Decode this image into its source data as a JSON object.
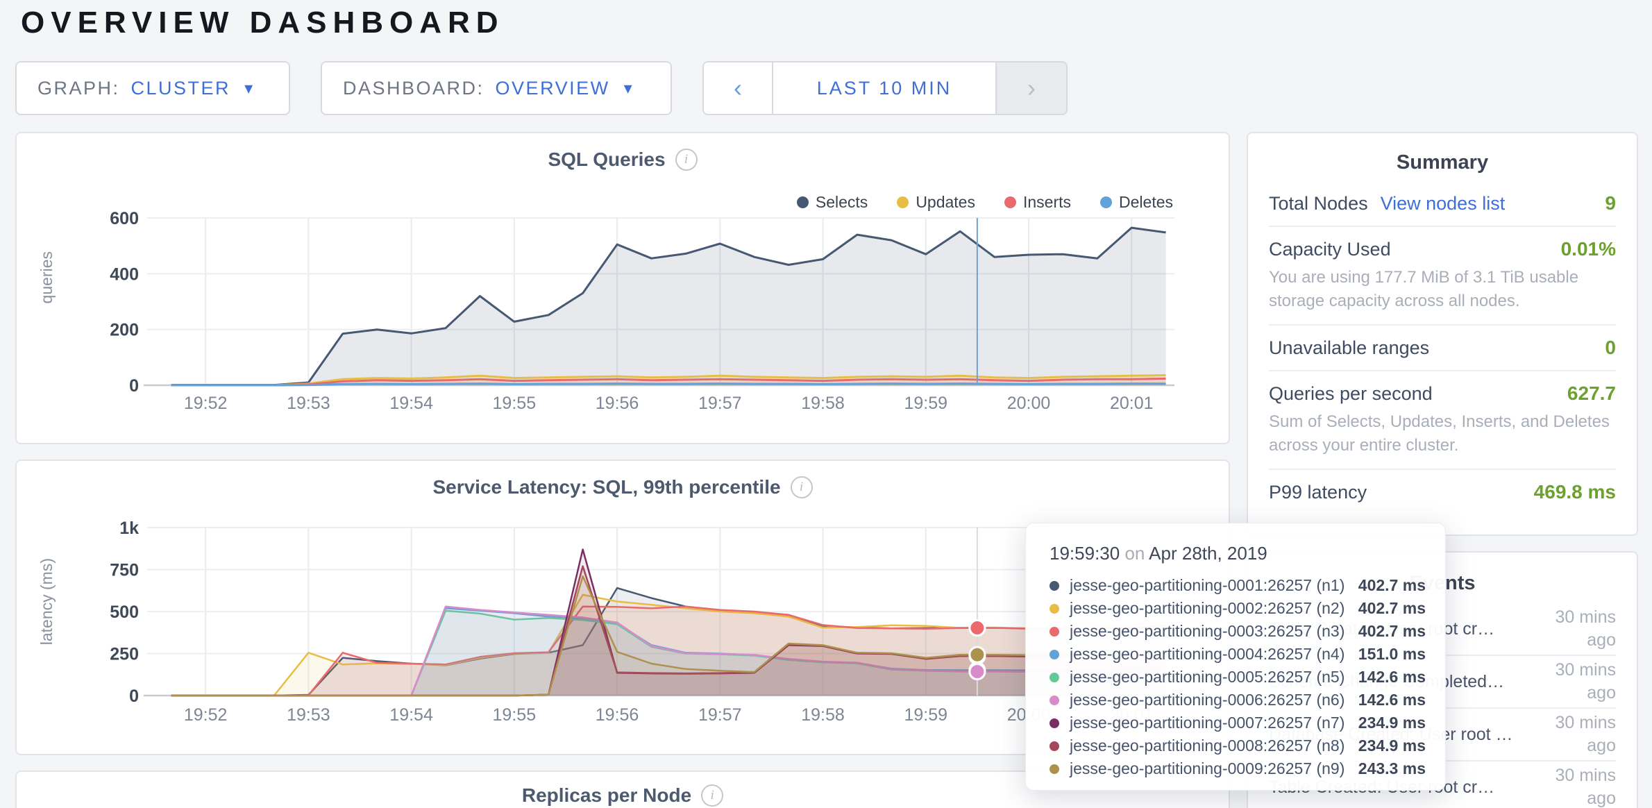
{
  "page": {
    "title": "OVERVIEW DASHBOARD"
  },
  "controls": {
    "graph": {
      "label": "GRAPH:",
      "value": "CLUSTER"
    },
    "dashboard": {
      "label": "DASHBOARD:",
      "value": "OVERVIEW"
    },
    "timewindow": {
      "label": "LAST 10 MIN",
      "prev": "‹",
      "next": "›"
    }
  },
  "summary": {
    "title": "Summary",
    "rows": [
      {
        "label": "Total Nodes",
        "link": "View nodes list",
        "value": "9"
      },
      {
        "label": "Capacity Used",
        "value": "0.01%",
        "description": "You are using 177.7 MiB of 3.1 TiB usable storage capacity across all nodes."
      },
      {
        "label": "Unavailable ranges",
        "value": "0"
      },
      {
        "label": "Queries per second",
        "value": "627.7",
        "description": "Sum of Selects, Updates, Inserts, and Deletes across your entire cluster."
      },
      {
        "label": "P99 latency",
        "value": "469.8 ms"
      }
    ]
  },
  "events": {
    "title": "Events",
    "items": [
      {
        "text": "Table Created: User root cr…",
        "time_ago": "30 mins ago"
      },
      {
        "text": "Schema Change Completed…",
        "time_ago": "30 mins ago"
      },
      {
        "text": "Database Created: User root …",
        "time_ago": "30 mins ago"
      },
      {
        "text": "Table Created: User root cr…",
        "time_ago": "30 mins ago"
      }
    ]
  },
  "tooltip": {
    "time": "19:59:30",
    "preposition": "on",
    "date": "Apr 28th, 2019",
    "rows": [
      {
        "name": "jesse-geo-partitioning-0001:26257 (n1)",
        "value": "402.7 ms"
      },
      {
        "name": "jesse-geo-partitioning-0002:26257 (n2)",
        "value": "402.7 ms"
      },
      {
        "name": "jesse-geo-partitioning-0003:26257 (n3)",
        "value": "402.7 ms"
      },
      {
        "name": "jesse-geo-partitioning-0004:26257 (n4)",
        "value": "151.0 ms"
      },
      {
        "name": "jesse-geo-partitioning-0005:26257 (n5)",
        "value": "142.6 ms"
      },
      {
        "name": "jesse-geo-partitioning-0006:26257 (n6)",
        "value": "142.6 ms"
      },
      {
        "name": "jesse-geo-partitioning-0007:26257 (n7)",
        "value": "234.9 ms"
      },
      {
        "name": "jesse-geo-partitioning-0008:26257 (n8)",
        "value": "234.9 ms"
      },
      {
        "name": "jesse-geo-partitioning-0009:26257 (n9)",
        "value": "243.3 ms"
      }
    ]
  },
  "chart_data": [
    {
      "type": "area",
      "title": "SQL Queries",
      "ylabel": "queries",
      "ylim": [
        0,
        600
      ],
      "y_ticks": [
        0,
        200,
        400,
        600
      ],
      "y_tick_labels": [
        "0",
        "200",
        "400",
        "600"
      ],
      "x_tick_labels": [
        "19:52",
        "19:53",
        "19:54",
        "19:55",
        "19:56",
        "19:57",
        "19:58",
        "19:59",
        "20:00",
        "20:01"
      ],
      "legend_position": "top-right",
      "grid": true,
      "crosshair_time": "19:59:30",
      "crosshair_time_sec": 480,
      "crosshair_color": "#70a1d9",
      "times_sec": [
        10,
        30,
        50,
        70,
        90,
        110,
        130,
        150,
        170,
        190,
        210,
        230,
        250,
        270,
        290,
        310,
        330,
        350,
        370,
        390,
        410,
        430,
        450,
        470,
        490,
        510,
        530,
        550,
        570,
        590
      ],
      "series": [
        {
          "name": "Selects",
          "color": "#475872",
          "values": [
            1,
            1,
            1,
            1,
            10,
            185,
            200,
            186,
            205,
            320,
            228,
            252,
            330,
            505,
            455,
            472,
            508,
            460,
            432,
            452,
            540,
            520,
            470,
            552,
            460,
            468,
            470,
            455,
            565,
            548
          ]
        },
        {
          "name": "Updates",
          "color": "#E7BE45",
          "values": [
            0,
            0,
            0,
            0,
            6,
            22,
            26,
            24,
            28,
            34,
            26,
            28,
            30,
            32,
            28,
            30,
            34,
            30,
            28,
            26,
            30,
            32,
            30,
            34,
            28,
            26,
            30,
            32,
            34,
            36
          ]
        },
        {
          "name": "Inserts",
          "color": "#E9696C",
          "values": [
            0,
            0,
            0,
            0,
            3,
            14,
            18,
            16,
            18,
            22,
            16,
            18,
            20,
            22,
            18,
            20,
            22,
            20,
            18,
            16,
            20,
            22,
            20,
            22,
            18,
            16,
            20,
            22,
            22,
            24
          ]
        },
        {
          "name": "Deletes",
          "color": "#61A2DB",
          "values": [
            0,
            0,
            0,
            0,
            1,
            4,
            5,
            4,
            5,
            6,
            4,
            5,
            5,
            6,
            5,
            5,
            6,
            5,
            5,
            4,
            5,
            6,
            5,
            6,
            5,
            4,
            5,
            5,
            6,
            6
          ]
        }
      ]
    },
    {
      "type": "area",
      "title": "Service Latency: SQL, 99th percentile",
      "ylabel": "latency (ms)",
      "ylim": [
        0,
        1000
      ],
      "y_ticks": [
        0,
        250,
        500,
        750,
        1000
      ],
      "y_tick_labels": [
        "0",
        "250",
        "500",
        "750",
        "1k"
      ],
      "x_tick_labels": [
        "19:52",
        "19:53",
        "19:54",
        "19:55",
        "19:56",
        "19:57",
        "19:58",
        "19:59",
        "20:00",
        "20:01"
      ],
      "grid": true,
      "crosshair_time": "19:59:30",
      "crosshair_time_sec": 480,
      "crosshair_color": "#d8dbe0",
      "crosshair_values": [
        402.7,
        402.7,
        402.7,
        151.0,
        142.6,
        142.6,
        234.9,
        234.9,
        243.3
      ],
      "times_sec": [
        10,
        30,
        50,
        70,
        90,
        110,
        130,
        150,
        170,
        190,
        210,
        230,
        250,
        270,
        290,
        310,
        330,
        350,
        370,
        390,
        410,
        430,
        450,
        470,
        490,
        510,
        530,
        550,
        570,
        590
      ],
      "series": [
        {
          "name": "jesse-geo-partitioning-0001:26257 (n1)",
          "color": "#475872",
          "values": [
            0,
            0,
            0,
            0,
            4,
            225,
            205,
            190,
            180,
            220,
            248,
            255,
            300,
            640,
            580,
            530,
            505,
            495,
            480,
            415,
            405,
            400,
            402,
            403,
            403,
            400,
            398,
            400,
            402,
            418
          ]
        },
        {
          "name": "jesse-geo-partitioning-0002:26257 (n2)",
          "color": "#E7BE45",
          "values": [
            0,
            0,
            0,
            0,
            255,
            185,
            192,
            188,
            182,
            225,
            250,
            255,
            600,
            560,
            540,
            520,
            500,
            490,
            470,
            405,
            408,
            418,
            415,
            403,
            405,
            400,
            402,
            405,
            420,
            432
          ]
        },
        {
          "name": "jesse-geo-partitioning-0003:26257 (n3)",
          "color": "#E9696C",
          "values": [
            0,
            0,
            0,
            0,
            2,
            255,
            195,
            190,
            185,
            230,
            252,
            258,
            530,
            528,
            520,
            530,
            510,
            500,
            480,
            420,
            402,
            400,
            398,
            402,
            403,
            398,
            400,
            402,
            398,
            405
          ]
        },
        {
          "name": "jesse-geo-partitioning-0004:26257 (n4)",
          "color": "#61A2DB",
          "values": [
            0,
            0,
            0,
            0,
            0,
            0,
            0,
            0,
            520,
            505,
            490,
            470,
            460,
            430,
            300,
            255,
            250,
            240,
            215,
            200,
            195,
            160,
            152,
            151,
            151,
            150,
            150,
            152,
            170,
            172
          ]
        },
        {
          "name": "jesse-geo-partitioning-0005:26257 (n5)",
          "color": "#62C99B",
          "values": [
            0,
            0,
            0,
            0,
            0,
            0,
            0,
            0,
            505,
            488,
            452,
            462,
            450,
            425,
            290,
            250,
            246,
            238,
            212,
            198,
            192,
            155,
            148,
            143,
            143,
            142,
            143,
            148,
            168,
            170
          ]
        },
        {
          "name": "jesse-geo-partitioning-0006:26257 (n6)",
          "color": "#D98BC9",
          "values": [
            0,
            0,
            0,
            0,
            0,
            0,
            0,
            0,
            530,
            510,
            495,
            480,
            465,
            435,
            295,
            252,
            248,
            242,
            218,
            202,
            196,
            158,
            150,
            143,
            143,
            142,
            144,
            150,
            172,
            174
          ]
        },
        {
          "name": "jesse-geo-partitioning-0007:26257 (n7)",
          "color": "#7A2F63",
          "values": [
            0,
            0,
            0,
            0,
            0,
            0,
            0,
            0,
            0,
            0,
            0,
            5,
            870,
            135,
            132,
            130,
            132,
            135,
            300,
            295,
            250,
            248,
            218,
            235,
            235,
            232,
            234,
            235,
            235,
            236
          ]
        },
        {
          "name": "jesse-geo-partitioning-0008:26257 (n8)",
          "color": "#A6455B",
          "values": [
            0,
            0,
            0,
            0,
            0,
            0,
            0,
            0,
            0,
            0,
            0,
            5,
            770,
            138,
            134,
            132,
            134,
            138,
            305,
            298,
            252,
            250,
            220,
            235,
            235,
            233,
            235,
            236,
            236,
            238
          ]
        },
        {
          "name": "jesse-geo-partitioning-0009:26257 (n9)",
          "color": "#AD924E",
          "values": [
            0,
            0,
            0,
            0,
            0,
            0,
            0,
            0,
            0,
            0,
            0,
            5,
            710,
            260,
            190,
            158,
            148,
            140,
            310,
            300,
            255,
            252,
            225,
            243,
            243,
            240,
            242,
            243,
            243,
            245
          ]
        }
      ]
    },
    {
      "type": "area",
      "title": "Replicas per Node",
      "series": []
    }
  ]
}
